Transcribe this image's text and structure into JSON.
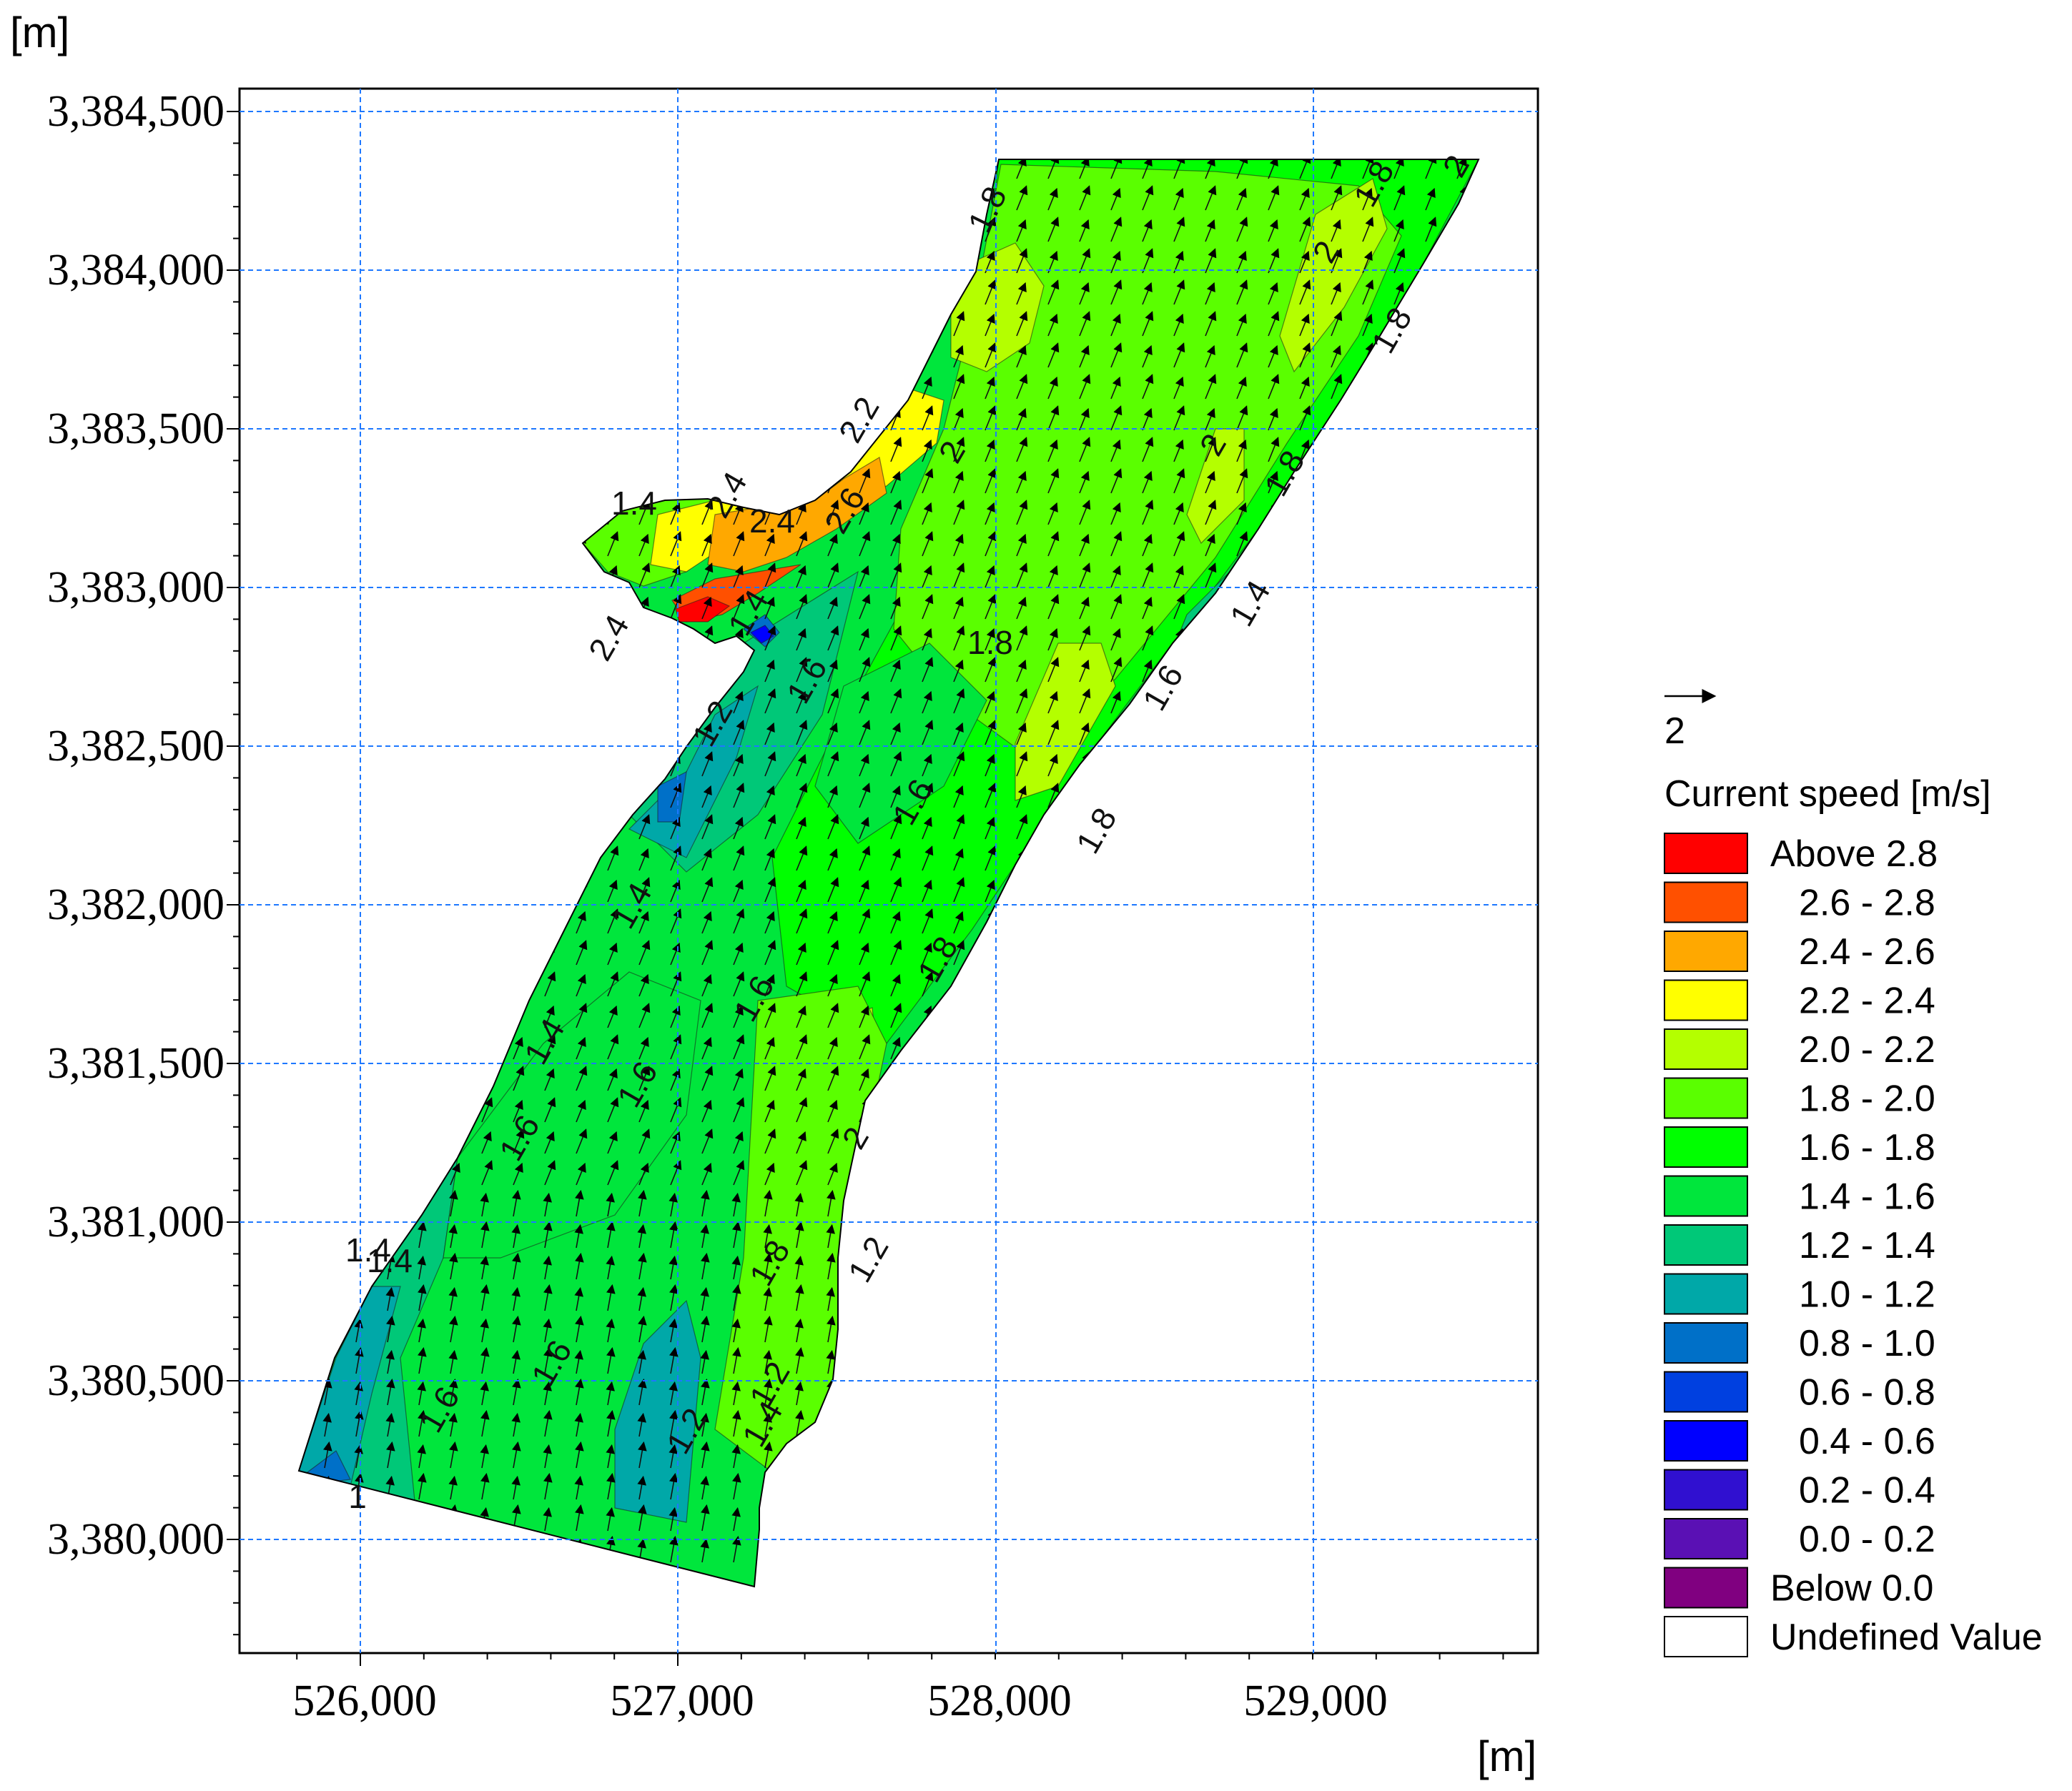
{
  "map": {
    "y_unit": "[m]",
    "x_unit": "[m]",
    "x_ticks": [
      "526,000",
      "527,000",
      "528,000",
      "529,000"
    ],
    "y_ticks": [
      "3,384,500",
      "3,384,000",
      "3,383,500",
      "3,383,000",
      "3,382,500",
      "3,382,000",
      "3,381,500",
      "3,381,000",
      "3,380,500",
      "3,380,000"
    ],
    "contour_labels": [
      "1.8",
      "1.8",
      "2",
      "2",
      "1.8",
      "2.2",
      "2.4",
      "2.6",
      "1.4",
      "2.4",
      "1.4",
      "2.4",
      "2",
      "2",
      "1.8",
      "1.8",
      "1.4",
      "1.6",
      "1.2",
      "1.6",
      "1.8",
      "1.4",
      "1.6",
      "1.8",
      "1.4",
      "1.6",
      "1.6",
      "1.6",
      "2",
      "1.8",
      "1.2",
      "1.4",
      "1.4",
      "1.6",
      "1.6",
      "1.2",
      "1.2",
      "1.4",
      "1"
    ]
  },
  "legend": {
    "vector_scale": "2",
    "title": "Current speed [m/s]",
    "entries": [
      {
        "label": "Above 2.8",
        "color": "#ff0000"
      },
      {
        "label": "2.6 - 2.8",
        "color": "#ff5000"
      },
      {
        "label": "2.4 - 2.6",
        "color": "#ffa800"
      },
      {
        "label": "2.2 - 2.4",
        "color": "#ffff00"
      },
      {
        "label": "2.0 - 2.2",
        "color": "#b4ff00"
      },
      {
        "label": "1.8 - 2.0",
        "color": "#5aff00"
      },
      {
        "label": "1.6 - 1.8",
        "color": "#00ff00"
      },
      {
        "label": "1.4 - 1.6",
        "color": "#00e63c"
      },
      {
        "label": "1.2 - 1.4",
        "color": "#00c878"
      },
      {
        "label": "1.0 - 1.2",
        "color": "#00a8a8"
      },
      {
        "label": "0.8 - 1.0",
        "color": "#0070c8"
      },
      {
        "label": "0.6 - 0.8",
        "color": "#0040e0"
      },
      {
        "label": "0.4 - 0.6",
        "color": "#0000ff"
      },
      {
        "label": "0.2 - 0.4",
        "color": "#3010d0"
      },
      {
        "label": "0.0 - 0.2",
        "color": "#5a10b4"
      },
      {
        "label": "Below 0.0",
        "color": "#800080"
      },
      {
        "label": "Undefined Value",
        "color": "#ffffff"
      }
    ]
  }
}
